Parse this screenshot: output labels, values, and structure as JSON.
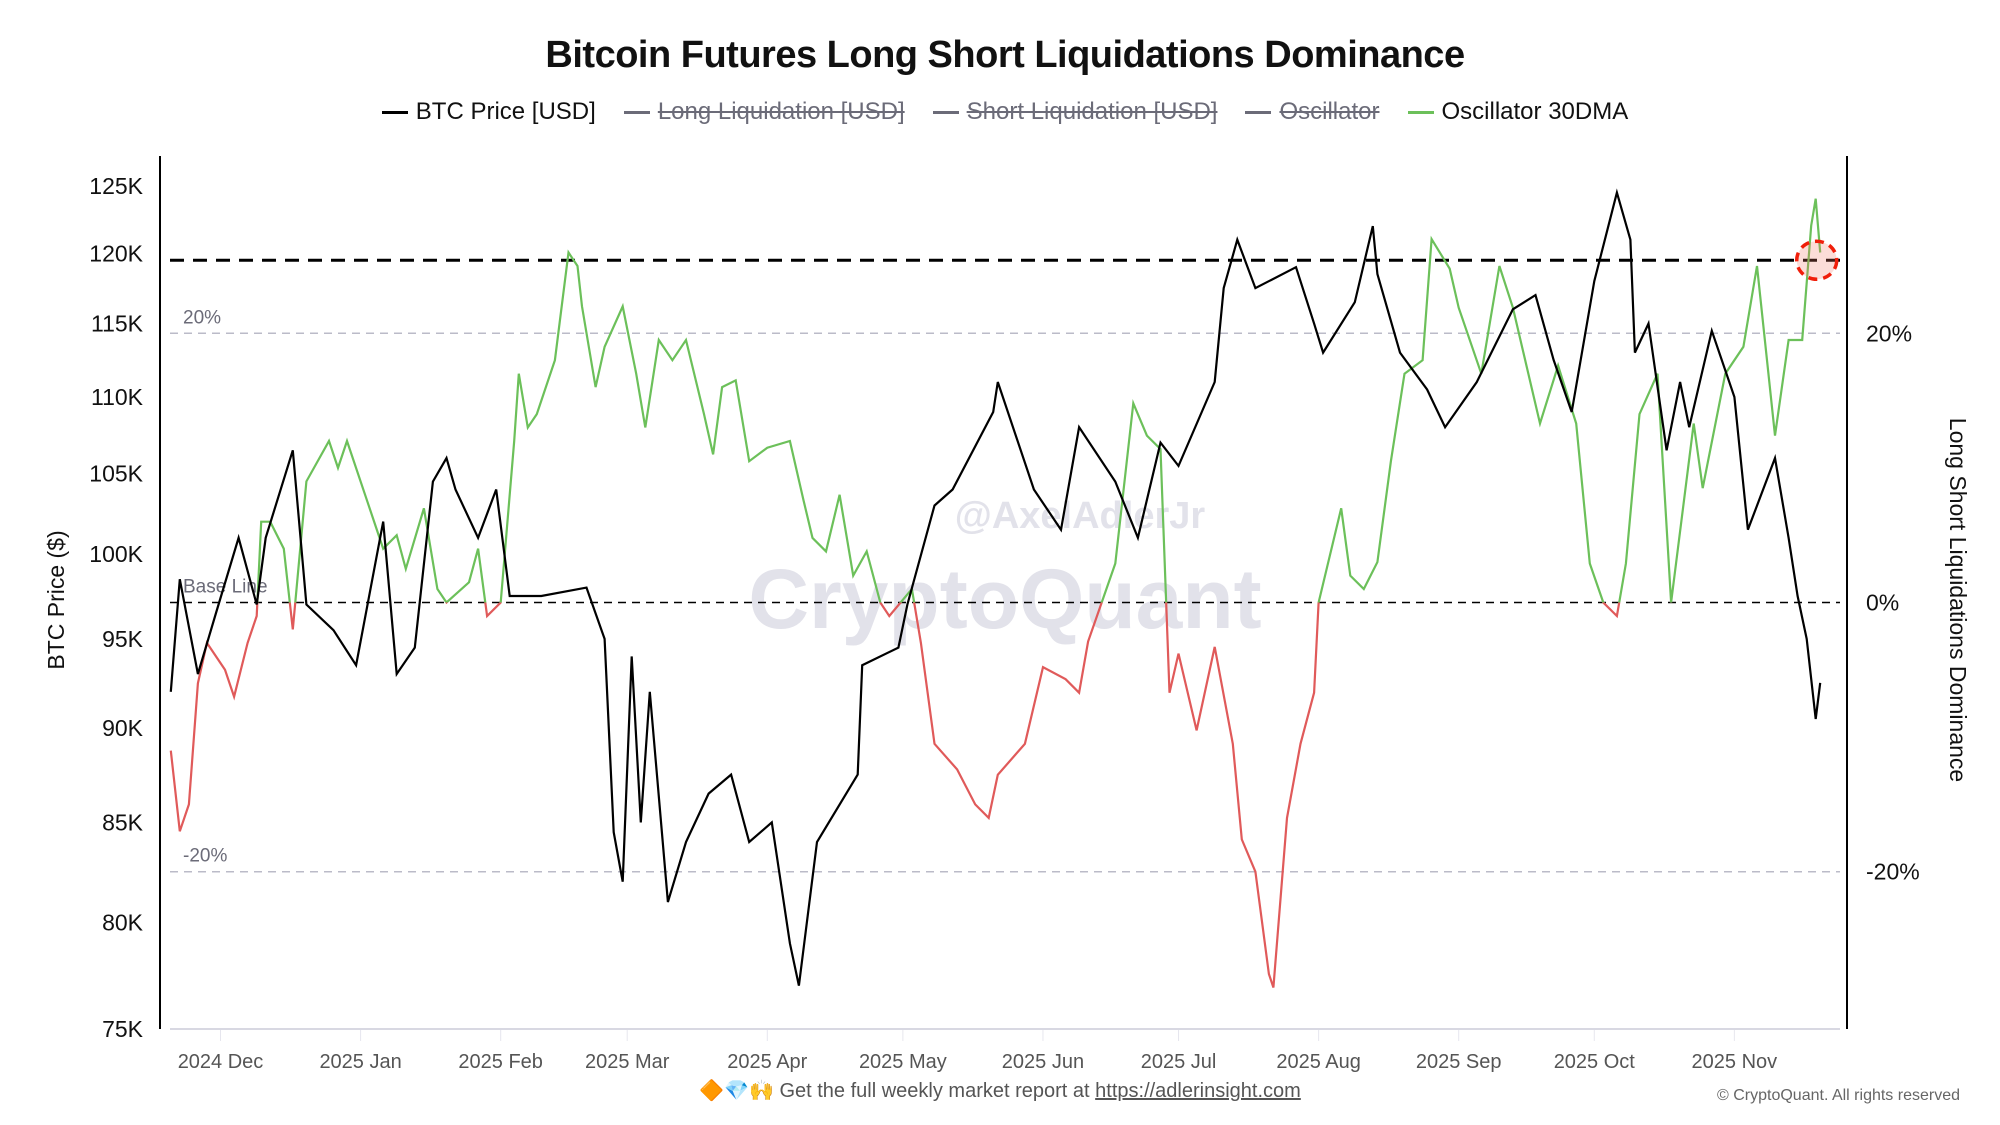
{
  "chart_data": {
    "type": "line",
    "title": "Bitcoin Futures Long Short Liquidations Dominance",
    "legend": [
      {
        "label": "BTC Price [USD]",
        "color": "#000000",
        "active": true
      },
      {
        "label": "Long Liquidation [USD]",
        "color": "#6b6b78",
        "active": false
      },
      {
        "label": "Short Liquidation [USD]",
        "color": "#6b6b78",
        "active": false
      },
      {
        "label": "Oscillator",
        "color": "#6b6b78",
        "active": false
      },
      {
        "label": "Oscillator 30DMA",
        "color": "#6cc05a",
        "active": true
      }
    ],
    "legend_position": "top-center",
    "x_unit": "days since 2024-12-01",
    "xlim": [
      -11,
      354
    ],
    "x_ticks": [
      {
        "day": 0,
        "label": "2024 Dec"
      },
      {
        "day": 31,
        "label": "2025 Jan"
      },
      {
        "day": 62,
        "label": "2025 Feb"
      },
      {
        "day": 90,
        "label": "2025 Mar"
      },
      {
        "day": 121,
        "label": "2025 Apr"
      },
      {
        "day": 151,
        "label": "2025 May"
      },
      {
        "day": 182,
        "label": "2025 Jun"
      },
      {
        "day": 212,
        "label": "2025 Jul"
      },
      {
        "day": 243,
        "label": "2025 Aug"
      },
      {
        "day": 274,
        "label": "2025 Sep"
      },
      {
        "day": 304,
        "label": "2025 Oct"
      },
      {
        "day": 335,
        "label": "2025 Nov"
      }
    ],
    "left_axis": {
      "label": "BTC Price ($)",
      "scale": "log",
      "ylim": [
        75000,
        125000
      ],
      "ticks": [
        {
          "v": 75000,
          "label": "75K"
        },
        {
          "v": 80000,
          "label": "80K"
        },
        {
          "v": 85000,
          "label": "85K"
        },
        {
          "v": 90000,
          "label": "90K"
        },
        {
          "v": 95000,
          "label": "95K"
        },
        {
          "v": 100000,
          "label": "100K"
        },
        {
          "v": 105000,
          "label": "105K"
        },
        {
          "v": 110000,
          "label": "110K"
        },
        {
          "v": 115000,
          "label": "115K"
        },
        {
          "v": 120000,
          "label": "120K"
        },
        {
          "v": 125000,
          "label": "125K"
        }
      ]
    },
    "right_axis": {
      "label": "Long Short Liquidations Dominance",
      "unit": "%",
      "ylim": [
        -32,
        33
      ],
      "ticks": [
        {
          "v": 20,
          "label": "20%"
        },
        {
          "v": 0,
          "label": "0%"
        },
        {
          "v": -20,
          "label": "-20%"
        }
      ]
    },
    "reference_lines": [
      {
        "axis": "right",
        "value": 20,
        "label": "20%"
      },
      {
        "axis": "right",
        "value": 0,
        "label": "Base Line"
      },
      {
        "axis": "right",
        "value": -20,
        "label": "-20%"
      }
    ],
    "threshold_line_price": 119500,
    "highlight_point": {
      "day": 353,
      "price": 119500
    },
    "series": [
      {
        "name": "BTC Price [USD]",
        "axis": "left",
        "color": "#000000",
        "points": [
          [
            -11,
            92000
          ],
          [
            -9,
            98500
          ],
          [
            -5,
            93000
          ],
          [
            -1,
            96500
          ],
          [
            4,
            101000
          ],
          [
            8,
            97000
          ],
          [
            10,
            101000
          ],
          [
            16,
            106500
          ],
          [
            19,
            97000
          ],
          [
            25,
            95500
          ],
          [
            30,
            93500
          ],
          [
            36,
            102000
          ],
          [
            39,
            93000
          ],
          [
            43,
            94500
          ],
          [
            47,
            104500
          ],
          [
            50,
            106000
          ],
          [
            52,
            104000
          ],
          [
            57,
            101000
          ],
          [
            61,
            104000
          ],
          [
            64,
            97500
          ],
          [
            71,
            97500
          ],
          [
            81,
            98000
          ],
          [
            85,
            95000
          ],
          [
            87,
            84500
          ],
          [
            89,
            82000
          ],
          [
            91,
            94000
          ],
          [
            93,
            85000
          ],
          [
            95,
            92000
          ],
          [
            99,
            81000
          ],
          [
            103,
            84000
          ],
          [
            108,
            86500
          ],
          [
            113,
            87500
          ],
          [
            117,
            84000
          ],
          [
            122,
            85000
          ],
          [
            126,
            79000
          ],
          [
            128,
            77000
          ],
          [
            132,
            84000
          ],
          [
            141,
            87500
          ],
          [
            142,
            93500
          ],
          [
            150,
            94500
          ],
          [
            152,
            97000
          ],
          [
            158,
            103000
          ],
          [
            162,
            104000
          ],
          [
            171,
            109000
          ],
          [
            172,
            111000
          ],
          [
            180,
            104000
          ],
          [
            186,
            101500
          ],
          [
            190,
            108000
          ],
          [
            198,
            104500
          ],
          [
            203,
            101000
          ],
          [
            208,
            107000
          ],
          [
            212,
            105500
          ],
          [
            220,
            111000
          ],
          [
            222,
            117500
          ],
          [
            225,
            121000
          ],
          [
            229,
            117500
          ],
          [
            238,
            119000
          ],
          [
            242,
            115000
          ],
          [
            244,
            113000
          ],
          [
            251,
            116500
          ],
          [
            255,
            122000
          ],
          [
            256,
            118500
          ],
          [
            261,
            113000
          ],
          [
            267,
            110500
          ],
          [
            271,
            108000
          ],
          [
            278,
            111000
          ],
          [
            286,
            116000
          ],
          [
            291,
            117000
          ],
          [
            295,
            112500
          ],
          [
            299,
            109000
          ],
          [
            304,
            118000
          ],
          [
            309,
            124500
          ],
          [
            312,
            121000
          ],
          [
            313,
            113000
          ],
          [
            316,
            115000
          ],
          [
            320,
            106500
          ],
          [
            323,
            111000
          ],
          [
            325,
            108000
          ],
          [
            330,
            114500
          ],
          [
            335,
            110000
          ],
          [
            338,
            101500
          ],
          [
            344,
            106000
          ],
          [
            347,
            101000
          ],
          [
            349,
            97500
          ],
          [
            351,
            95000
          ],
          [
            353,
            90500
          ],
          [
            354,
            92500
          ]
        ]
      },
      {
        "name": "Oscillator 30DMA",
        "axis": "right",
        "color_positive": "#6cc05a",
        "color_negative": "#e05a5a",
        "points": [
          [
            -11,
            -11
          ],
          [
            -9,
            -17
          ],
          [
            -7,
            -15
          ],
          [
            -5,
            -6
          ],
          [
            -3,
            -3
          ],
          [
            1,
            -5
          ],
          [
            3,
            -7
          ],
          [
            6,
            -3
          ],
          [
            8,
            -1
          ],
          [
            9,
            6
          ],
          [
            11,
            6
          ],
          [
            14,
            4
          ],
          [
            16,
            -2
          ],
          [
            19,
            9
          ],
          [
            24,
            12
          ],
          [
            26,
            10
          ],
          [
            28,
            12
          ],
          [
            32,
            8
          ],
          [
            36,
            4
          ],
          [
            39,
            5
          ],
          [
            41,
            2.5
          ],
          [
            45,
            7
          ],
          [
            48,
            1
          ],
          [
            50,
            0
          ],
          [
            55,
            1.5
          ],
          [
            57,
            4
          ],
          [
            59,
            -1
          ],
          [
            62,
            0
          ],
          [
            65,
            12
          ],
          [
            66,
            17
          ],
          [
            68,
            13
          ],
          [
            70,
            14
          ],
          [
            74,
            18
          ],
          [
            77,
            26
          ],
          [
            79,
            25
          ],
          [
            80,
            22
          ],
          [
            83,
            16
          ],
          [
            85,
            19
          ],
          [
            89,
            22
          ],
          [
            92,
            17
          ],
          [
            94,
            13
          ],
          [
            97,
            19.5
          ],
          [
            100,
            18
          ],
          [
            103,
            19.5
          ],
          [
            107,
            14
          ],
          [
            109,
            11
          ],
          [
            111,
            16
          ],
          [
            114,
            16.5
          ],
          [
            117,
            10.5
          ],
          [
            121,
            11.5
          ],
          [
            126,
            12
          ],
          [
            129,
            7.6
          ],
          [
            131,
            4.8
          ],
          [
            134,
            3.8
          ],
          [
            137,
            8
          ],
          [
            140,
            2
          ],
          [
            143,
            3.8
          ],
          [
            146,
            0
          ],
          [
            148,
            -1
          ],
          [
            153,
            1
          ],
          [
            155,
            -3
          ],
          [
            158,
            -10.5
          ],
          [
            163,
            -12.4
          ],
          [
            167,
            -15
          ],
          [
            170,
            -16
          ],
          [
            172,
            -12.8
          ],
          [
            178,
            -10.5
          ],
          [
            182,
            -4.8
          ],
          [
            187,
            -5.7
          ],
          [
            190,
            -6.7
          ],
          [
            192,
            -2.9
          ],
          [
            198,
            2.9
          ],
          [
            202,
            14.8
          ],
          [
            205,
            12.4
          ],
          [
            208,
            11.4
          ],
          [
            210,
            -6.7
          ],
          [
            212,
            -3.8
          ],
          [
            216,
            -9.5
          ],
          [
            220,
            -3.3
          ],
          [
            224,
            -10.5
          ],
          [
            226,
            -17.6
          ],
          [
            229,
            -20
          ],
          [
            232,
            -27.6
          ],
          [
            233,
            -28.6
          ],
          [
            236,
            -16
          ],
          [
            239,
            -10.5
          ],
          [
            242,
            -6.7
          ],
          [
            243,
            0
          ],
          [
            248,
            7
          ],
          [
            250,
            2
          ],
          [
            253,
            1
          ],
          [
            256,
            3
          ],
          [
            259,
            10.5
          ],
          [
            262,
            17
          ],
          [
            266,
            18
          ],
          [
            268,
            27
          ],
          [
            272,
            24.8
          ],
          [
            274,
            21.9
          ],
          [
            279,
            17
          ],
          [
            283,
            25
          ],
          [
            286,
            21.9
          ],
          [
            292,
            13.3
          ],
          [
            296,
            17.6
          ],
          [
            300,
            13.3
          ],
          [
            303,
            2.9
          ],
          [
            306,
            0
          ],
          [
            309,
            -1
          ],
          [
            311,
            2.9
          ],
          [
            314,
            14
          ],
          [
            318,
            17
          ],
          [
            321,
            0
          ],
          [
            326,
            13.3
          ],
          [
            328,
            8.5
          ],
          [
            333,
            17
          ],
          [
            337,
            19
          ],
          [
            340,
            25
          ],
          [
            344,
            12.4
          ],
          [
            347,
            19.5
          ],
          [
            350,
            19.5
          ],
          [
            352,
            28
          ],
          [
            353,
            30
          ],
          [
            354,
            26
          ]
        ]
      }
    ],
    "watermark": {
      "brand": "CryptoQuant",
      "author": "@AxelAdlerJr"
    }
  },
  "footer": {
    "emojis": "🔶💎🙌",
    "text": "Get the full weekly market report at",
    "link": "https://adlerinsight.com",
    "copyright": "© CryptoQuant. All rights reserved"
  }
}
